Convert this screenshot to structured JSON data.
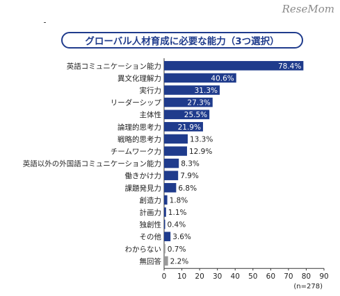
{
  "watermark": "ReseMom",
  "chart_data": {
    "type": "bar",
    "orientation": "horizontal",
    "title": "グローバル人材育成に必要な能力（3つ選択）",
    "categories": [
      "英語コミュニケーション能力",
      "異文化理解力",
      "実行力",
      "リーダーシップ",
      "主体性",
      "論理的思考力",
      "戦略的思考力",
      "チームワーク力",
      "英語以外の外国語コミュニケーション能力",
      "働きかけ力",
      "課題発見力",
      "創造力",
      "計画力",
      "独創性",
      "その他",
      "わからない",
      "無回答"
    ],
    "values": [
      78.4,
      40.6,
      31.3,
      27.3,
      25.5,
      21.9,
      13.3,
      12.9,
      8.3,
      7.9,
      6.8,
      1.8,
      1.1,
      0.4,
      3.6,
      0.7,
      2.2
    ],
    "value_labels": [
      "78.4%",
      "40.6%",
      "31.3%",
      "27.3%",
      "25.5%",
      "21.9%",
      "13.3%",
      "12.9%",
      "8.3%",
      "7.9%",
      "6.8%",
      "1.8%",
      "1.1%",
      "0.4%",
      "3.6%",
      "0.7%",
      "2.2%"
    ],
    "bar_colors": [
      "#1f3b8c",
      "#1f3b8c",
      "#1f3b8c",
      "#1f3b8c",
      "#1f3b8c",
      "#1f3b8c",
      "#1f3b8c",
      "#1f3b8c",
      "#1f3b8c",
      "#1f3b8c",
      "#1f3b8c",
      "#1f3b8c",
      "#1f3b8c",
      "#1f3b8c",
      "#1f3b8c",
      "#9a9a9a",
      "#9a9a9a"
    ],
    "xlim": [
      0,
      90
    ],
    "xticks": [
      "0",
      "10",
      "20",
      "30",
      "40",
      "50",
      "60",
      "70",
      "80",
      "90"
    ],
    "note": "(n=278)",
    "grid": false
  }
}
